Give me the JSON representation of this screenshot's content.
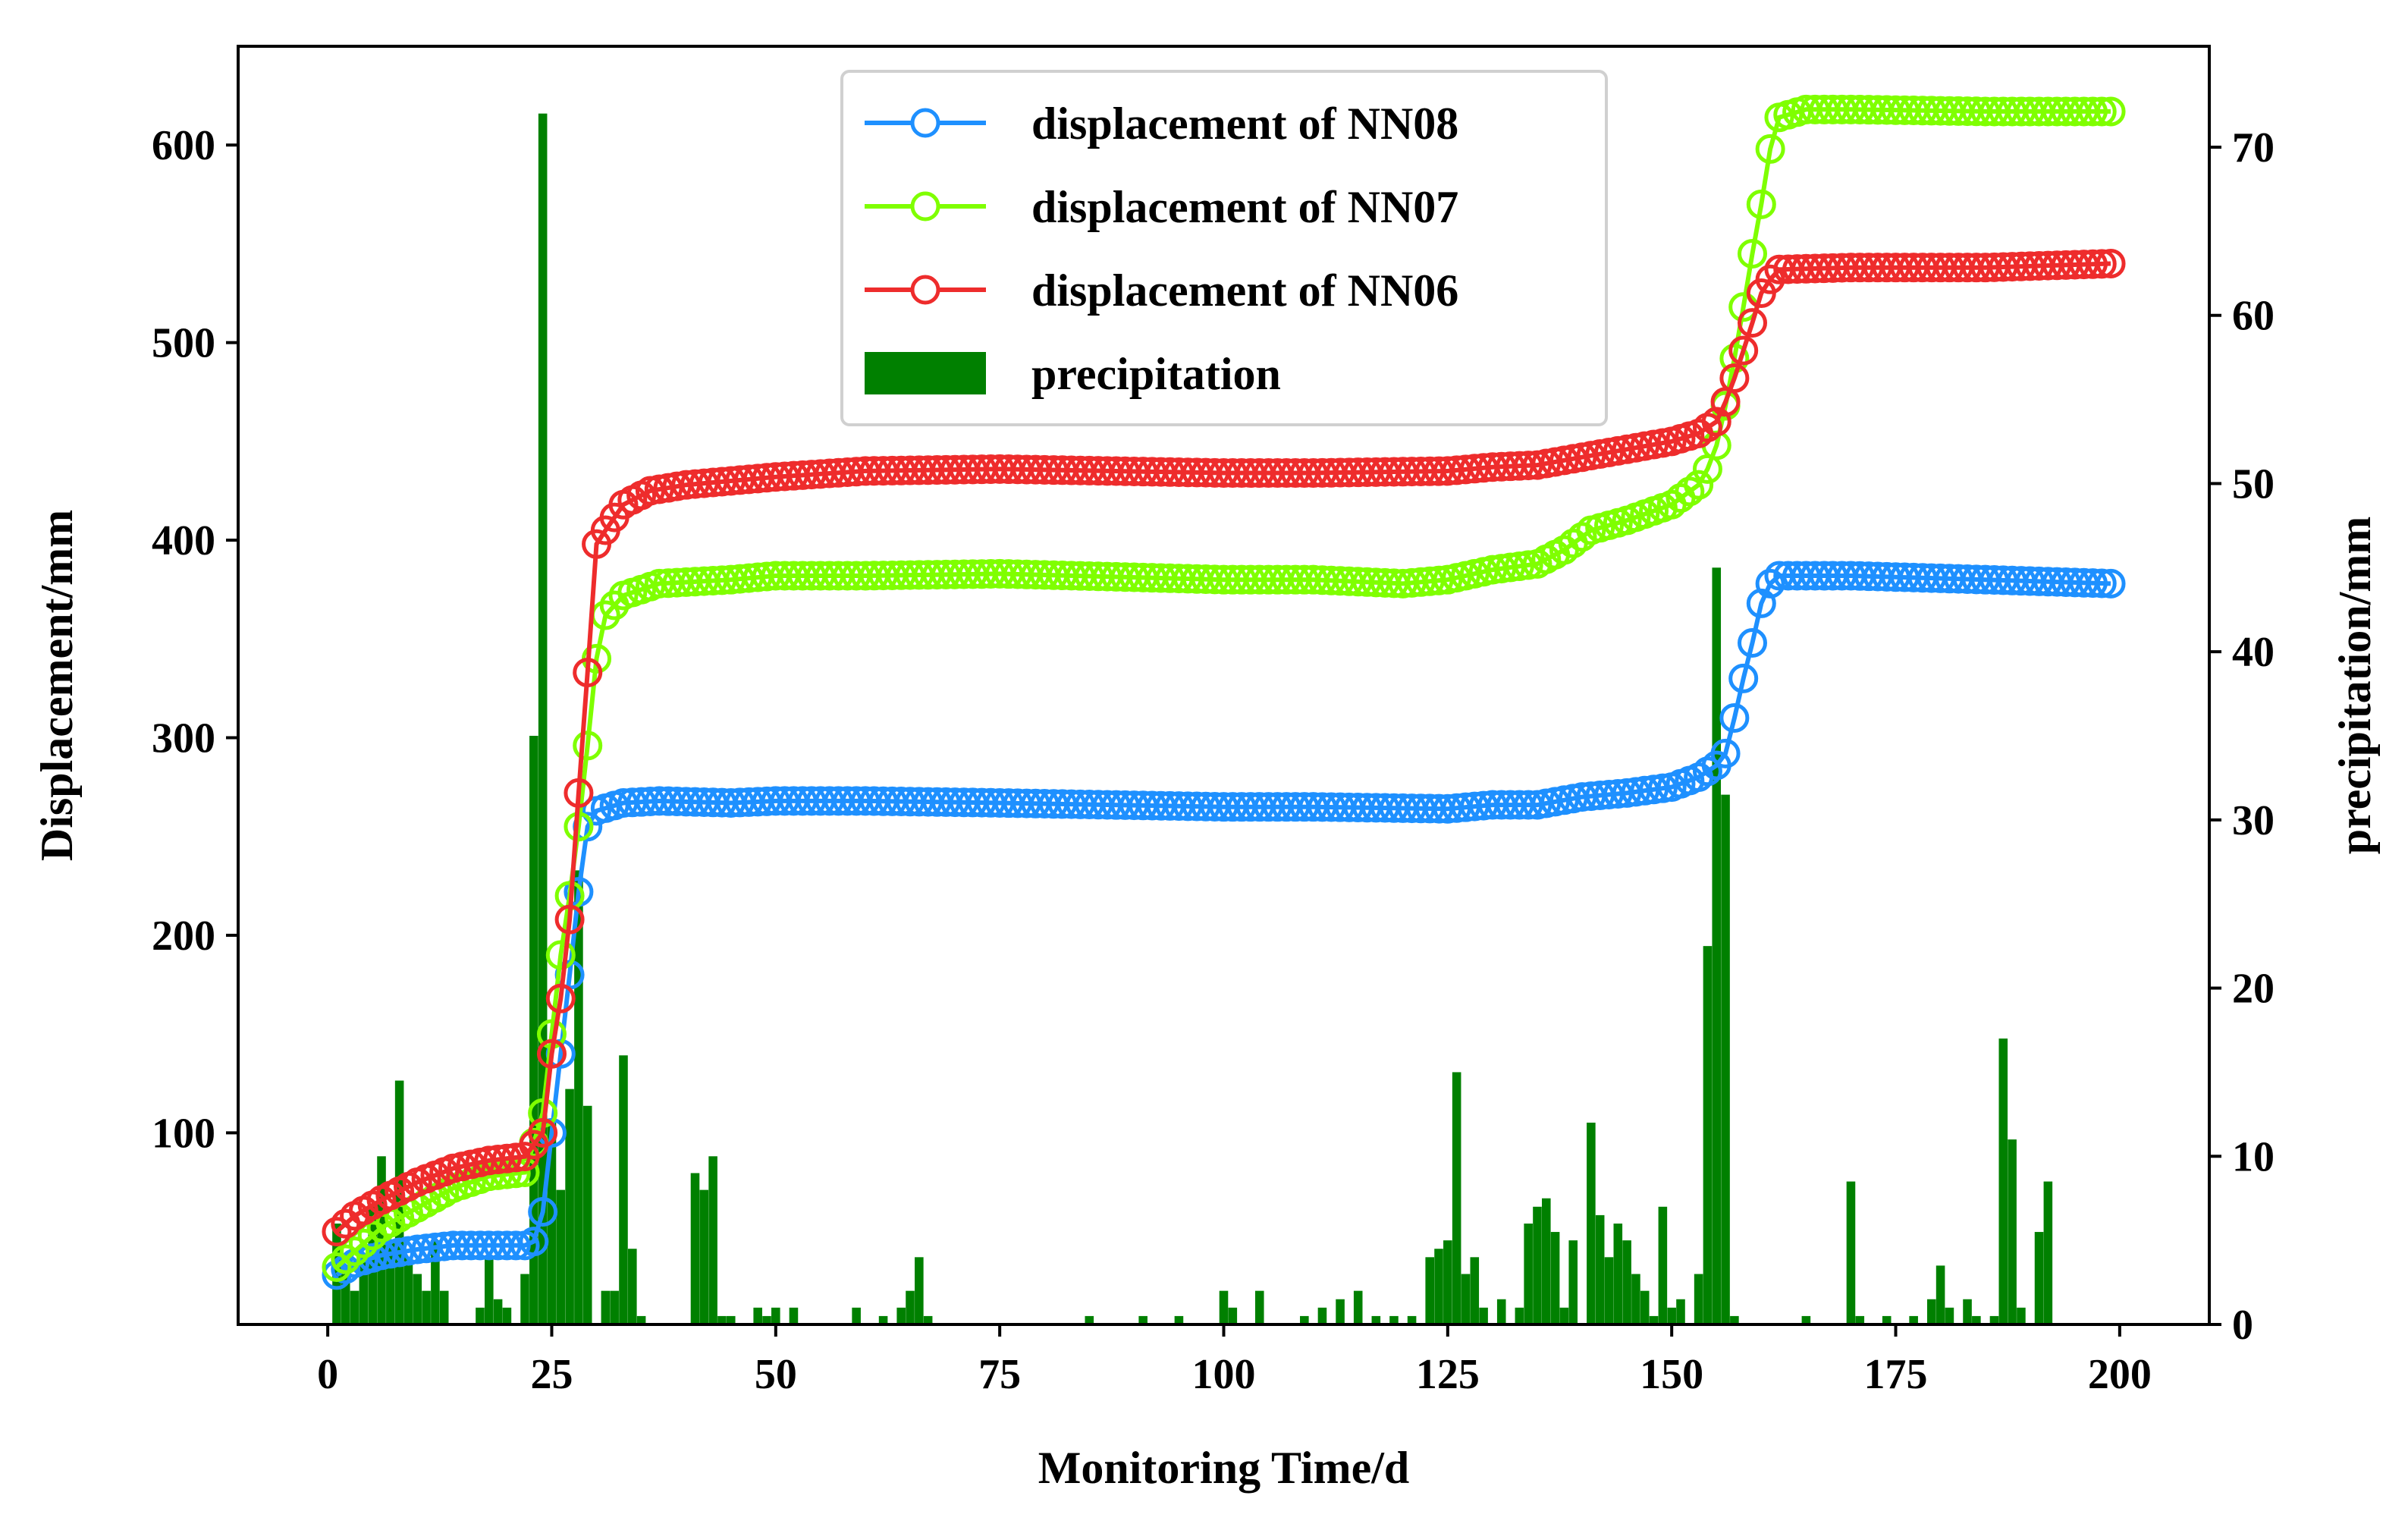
{
  "chart_data": {
    "type": "line+bar",
    "title": "",
    "xlabel": "Monitoring Time/d",
    "ylabel": "Displacement/mm",
    "y2label": "precipitation/mm",
    "xlim": [
      -10,
      210
    ],
    "ylim": [
      3,
      650
    ],
    "y2lim": [
      0,
      76
    ],
    "xticks": [
      0,
      25,
      50,
      75,
      100,
      125,
      150,
      175,
      200
    ],
    "yticks": [
      100,
      200,
      300,
      400,
      500,
      600
    ],
    "y2ticks": [
      0,
      10,
      20,
      30,
      40,
      50,
      60,
      70
    ],
    "legend_position": "top-center",
    "colors": {
      "NN08": "#1e90ff",
      "NN07": "#7fff00",
      "NN06": "#ee2c2c",
      "precipitation": "#008000"
    },
    "series": [
      {
        "name": "displacement of NN08",
        "key": "NN08",
        "points": [
          [
            1,
            28
          ],
          [
            3,
            34
          ],
          [
            6,
            38
          ],
          [
            10,
            41
          ],
          [
            14,
            43
          ],
          [
            18,
            43
          ],
          [
            22,
            43
          ],
          [
            23,
            45
          ],
          [
            24,
            60
          ],
          [
            25,
            100
          ],
          [
            26,
            140
          ],
          [
            27,
            180
          ],
          [
            28,
            222
          ],
          [
            29,
            255
          ],
          [
            30,
            263
          ],
          [
            33,
            267
          ],
          [
            37,
            268
          ],
          [
            45,
            267
          ],
          [
            50,
            268
          ],
          [
            60,
            268
          ],
          [
            75,
            267
          ],
          [
            100,
            265
          ],
          [
            110,
            265
          ],
          [
            125,
            264
          ],
          [
            130,
            266
          ],
          [
            135,
            266
          ],
          [
            140,
            270
          ],
          [
            145,
            272
          ],
          [
            150,
            275
          ],
          [
            153,
            280
          ],
          [
            155,
            286
          ],
          [
            156,
            292
          ],
          [
            157,
            310
          ],
          [
            158,
            330
          ],
          [
            159,
            348
          ],
          [
            160,
            368
          ],
          [
            161,
            378
          ],
          [
            162,
            382
          ],
          [
            170,
            382
          ],
          [
            185,
            380
          ],
          [
            199,
            378
          ]
        ]
      },
      {
        "name": "displacement of NN07",
        "key": "NN07",
        "points": [
          [
            1,
            32
          ],
          [
            3,
            40
          ],
          [
            6,
            52
          ],
          [
            10,
            62
          ],
          [
            14,
            72
          ],
          [
            18,
            78
          ],
          [
            22,
            80
          ],
          [
            24,
            110
          ],
          [
            25,
            150
          ],
          [
            26,
            190
          ],
          [
            27,
            220
          ],
          [
            28,
            255
          ],
          [
            29,
            296
          ],
          [
            30,
            340
          ],
          [
            31,
            362
          ],
          [
            33,
            372
          ],
          [
            37,
            378
          ],
          [
            45,
            380
          ],
          [
            50,
            382
          ],
          [
            60,
            382
          ],
          [
            75,
            383
          ],
          [
            100,
            380
          ],
          [
            110,
            380
          ],
          [
            120,
            378
          ],
          [
            125,
            380
          ],
          [
            130,
            385
          ],
          [
            135,
            388
          ],
          [
            138,
            395
          ],
          [
            141,
            405
          ],
          [
            145,
            410
          ],
          [
            150,
            418
          ],
          [
            153,
            428
          ],
          [
            154,
            436
          ],
          [
            155,
            448
          ],
          [
            156,
            468
          ],
          [
            157,
            492
          ],
          [
            158,
            518
          ],
          [
            159,
            545
          ],
          [
            160,
            570
          ],
          [
            161,
            598
          ],
          [
            162,
            614
          ],
          [
            165,
            618
          ],
          [
            170,
            618
          ],
          [
            185,
            617
          ],
          [
            199,
            617
          ]
        ]
      },
      {
        "name": "displacement of NN06",
        "key": "NN06",
        "points": [
          [
            1,
            50
          ],
          [
            3,
            58
          ],
          [
            6,
            66
          ],
          [
            10,
            75
          ],
          [
            14,
            82
          ],
          [
            18,
            86
          ],
          [
            22,
            88
          ],
          [
            24,
            100
          ],
          [
            25,
            140
          ],
          [
            26,
            168
          ],
          [
            27,
            208
          ],
          [
            28,
            272
          ],
          [
            29,
            333
          ],
          [
            30,
            398
          ],
          [
            31,
            405
          ],
          [
            33,
            418
          ],
          [
            36,
            425
          ],
          [
            40,
            428
          ],
          [
            50,
            432
          ],
          [
            60,
            435
          ],
          [
            75,
            436
          ],
          [
            100,
            434
          ],
          [
            110,
            434
          ],
          [
            125,
            435
          ],
          [
            130,
            437
          ],
          [
            135,
            438
          ],
          [
            140,
            442
          ],
          [
            145,
            446
          ],
          [
            150,
            450
          ],
          [
            153,
            454
          ],
          [
            155,
            460
          ],
          [
            156,
            470
          ],
          [
            157,
            482
          ],
          [
            158,
            496
          ],
          [
            159,
            510
          ],
          [
            160,
            525
          ],
          [
            161,
            532
          ],
          [
            162,
            537
          ],
          [
            170,
            538
          ],
          [
            185,
            538
          ],
          [
            199,
            540
          ]
        ]
      }
    ],
    "precipitation": {
      "name": "precipitation",
      "x": [
        1,
        2,
        3,
        4,
        5,
        6,
        7,
        8,
        9,
        10,
        11,
        12,
        13,
        17,
        18,
        19,
        20,
        22,
        23,
        24,
        25,
        26,
        27,
        28,
        29,
        31,
        32,
        33,
        34,
        35,
        41,
        42,
        43,
        44,
        45,
        48,
        49,
        50,
        52,
        59,
        62,
        64,
        65,
        66,
        67,
        85,
        91,
        95,
        100,
        101,
        104,
        109,
        111,
        113,
        115,
        117,
        119,
        121,
        123,
        124,
        125,
        126,
        127,
        128,
        129,
        131,
        133,
        134,
        135,
        136,
        137,
        138,
        139,
        141,
        142,
        143,
        144,
        145,
        146,
        147,
        148,
        149,
        150,
        151,
        153,
        154,
        155,
        156,
        157,
        165,
        170,
        171,
        174,
        177,
        179,
        180,
        181,
        183,
        184,
        186,
        187,
        188,
        189,
        191,
        192
      ],
      "values": [
        6,
        3,
        2,
        4,
        7,
        10,
        5,
        14.5,
        4,
        3,
        2,
        5,
        2,
        1,
        4,
        1.5,
        1,
        3,
        35,
        72,
        12,
        8,
        14,
        27,
        13,
        2,
        2,
        16,
        4.5,
        0.5,
        9,
        8,
        10,
        0.5,
        0.5,
        1,
        0.5,
        1,
        1,
        1,
        0.5,
        1,
        2,
        4,
        0.5,
        0.5,
        0.5,
        0.5,
        2,
        1,
        2,
        0.5,
        1,
        1.5,
        2,
        0.5,
        0.5,
        0.5,
        4,
        4.5,
        5,
        15,
        3,
        4,
        1,
        1.5,
        1,
        6,
        7,
        7.5,
        5.5,
        1,
        5,
        12,
        6.5,
        4,
        6,
        5,
        3,
        2,
        0.5,
        7,
        1,
        1.5,
        3,
        22.5,
        45,
        31.5,
        0.5,
        0.5,
        8.5,
        0.5,
        0.5,
        0.5,
        1.5,
        3.5,
        1,
        1.5,
        0.5,
        0.5,
        17,
        11,
        1,
        5.5,
        8.5
      ]
    }
  }
}
